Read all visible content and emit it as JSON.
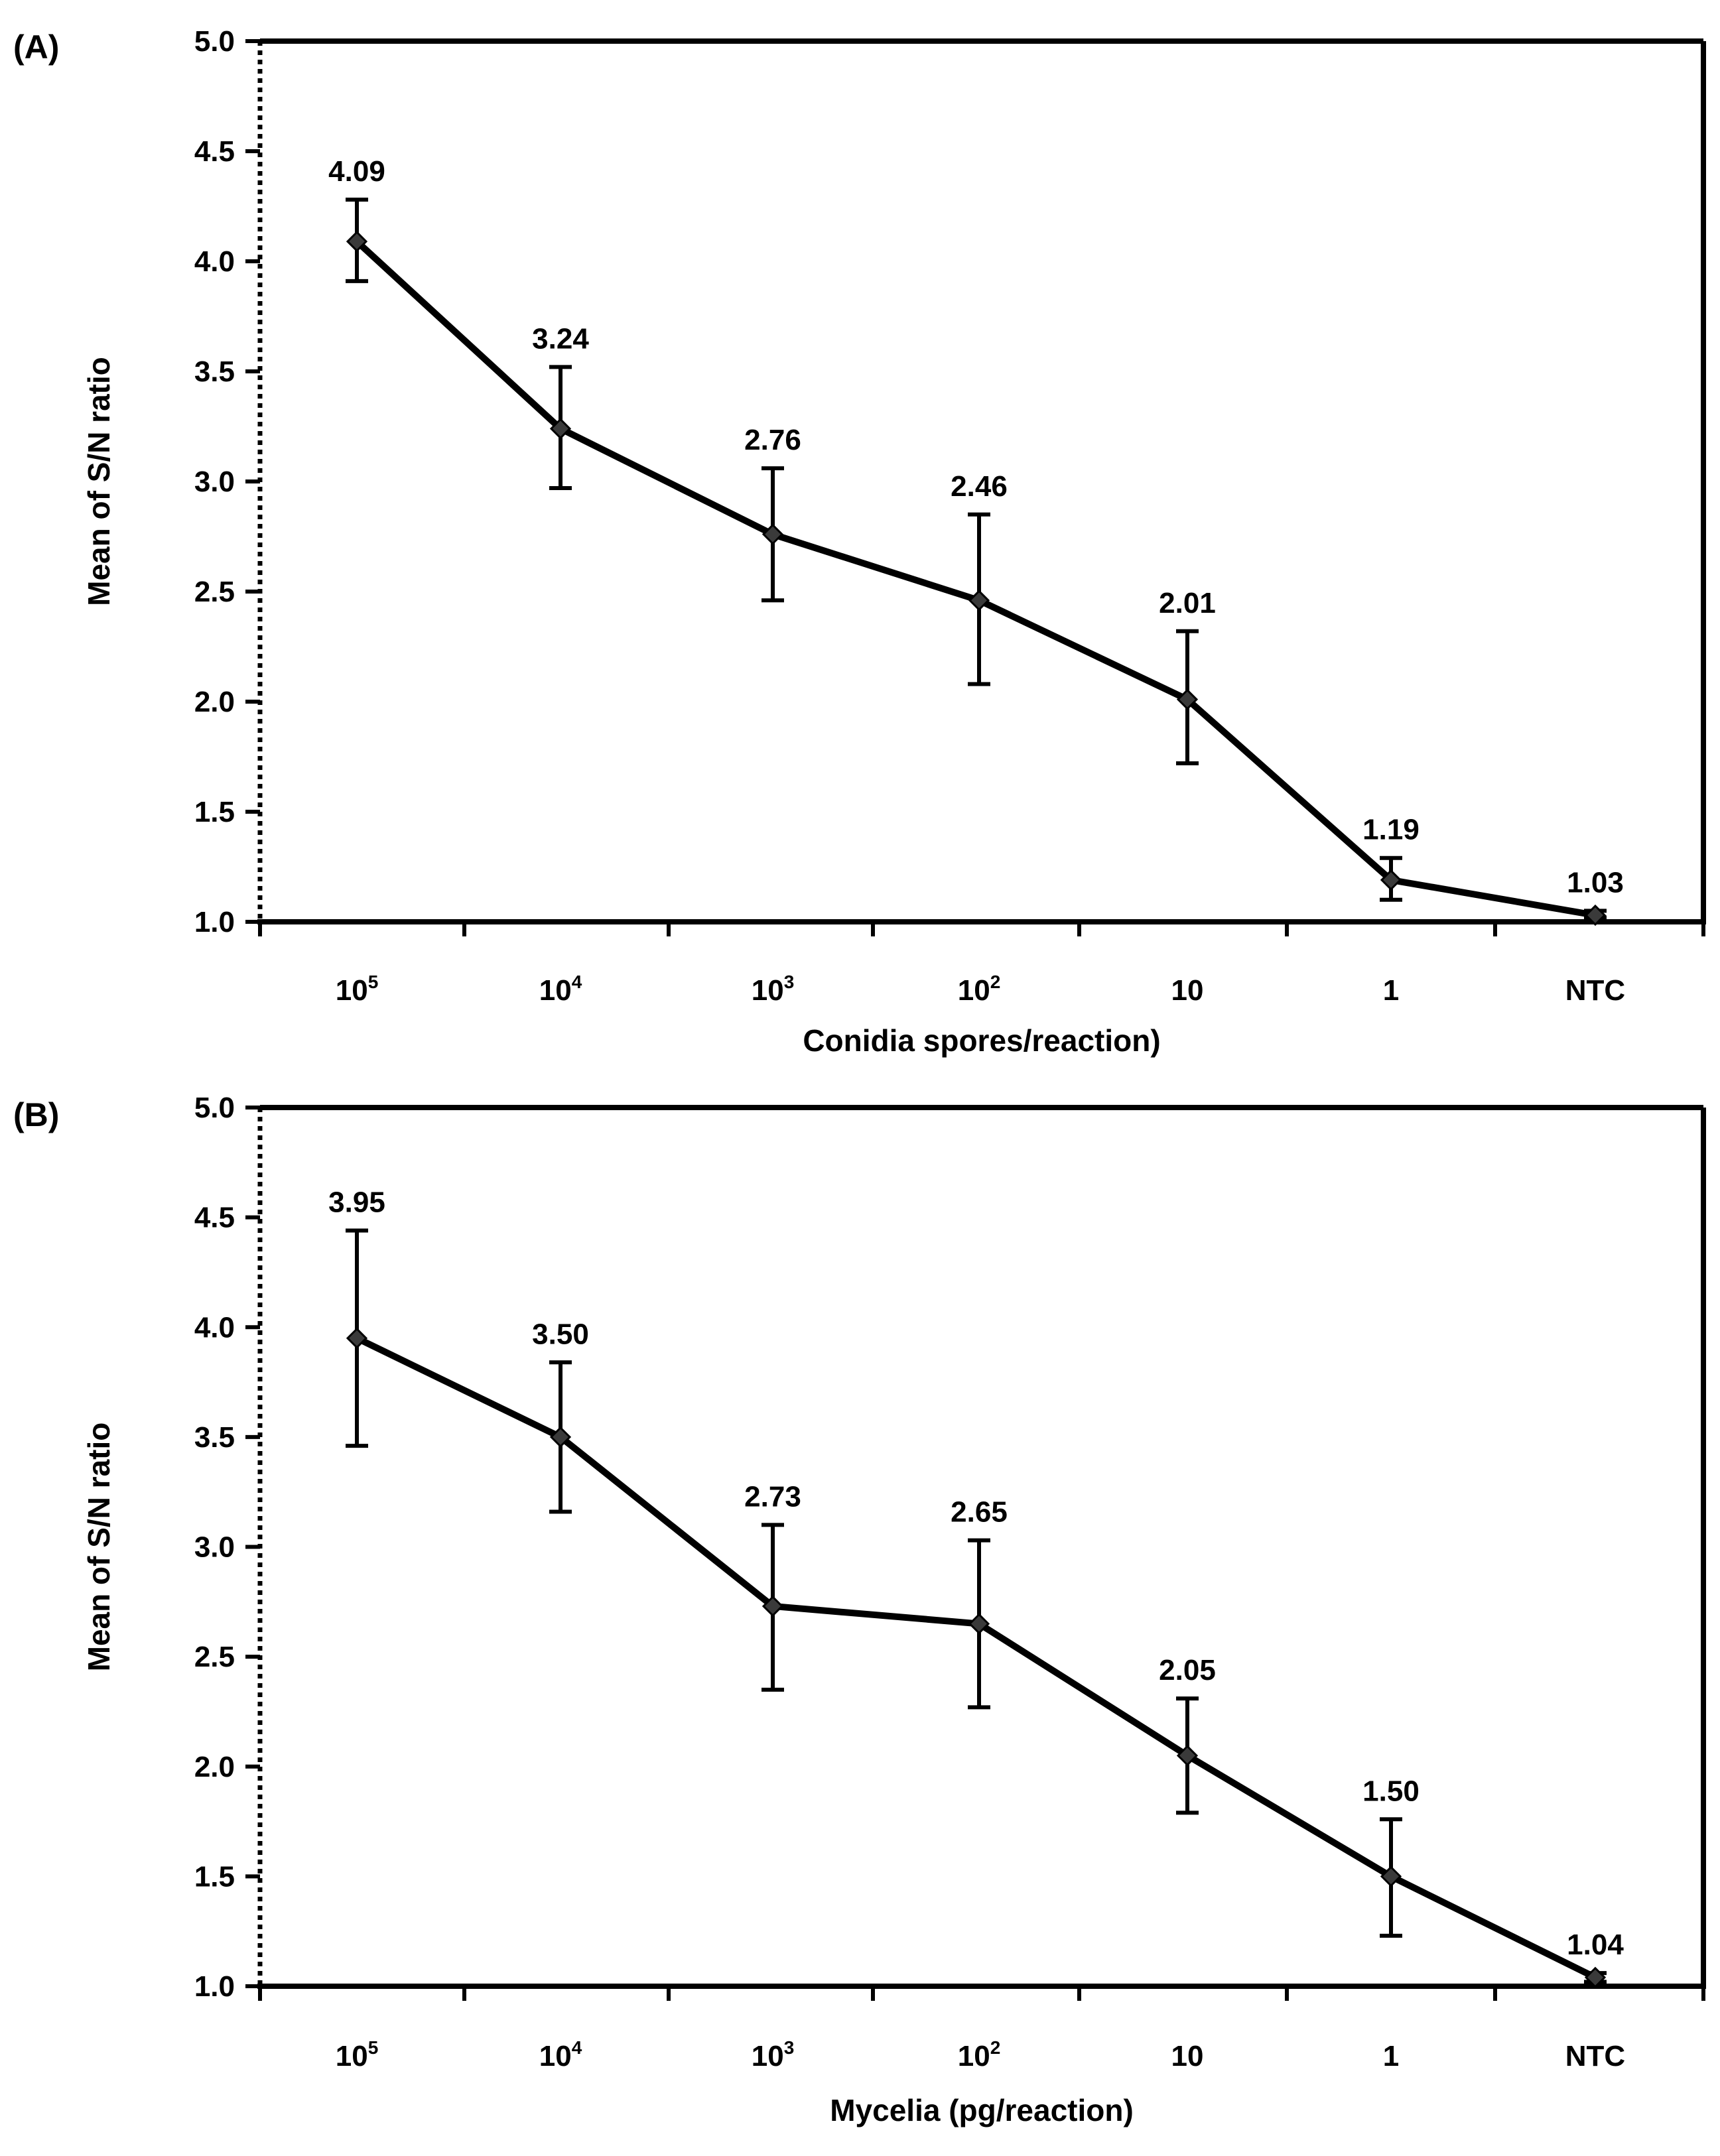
{
  "chart_data": [
    {
      "type": "line",
      "panel_label": "(A)",
      "xlabel": "Conidia spores/reaction)",
      "ylabel": "Mean of S/N ratio",
      "ylim": [
        1.0,
        5.0
      ],
      "yticks": [
        "1.0",
        "1.5",
        "2.0",
        "2.5",
        "3.0",
        "3.5",
        "4.0",
        "4.5",
        "5.0"
      ],
      "categories": [
        {
          "base": "10",
          "sup": "5"
        },
        {
          "base": "10",
          "sup": "4"
        },
        {
          "base": "10",
          "sup": "3"
        },
        {
          "base": "10",
          "sup": "2"
        },
        {
          "base": "10",
          "sup": ""
        },
        {
          "base": "1",
          "sup": ""
        },
        {
          "base": "NTC",
          "sup": ""
        }
      ],
      "values": [
        4.09,
        3.24,
        2.76,
        2.46,
        2.01,
        1.19,
        1.03
      ],
      "value_labels": [
        "4.09",
        "3.24",
        "2.76",
        "2.46",
        "2.01",
        "1.19",
        "1.03"
      ],
      "error_upper": [
        4.28,
        3.52,
        3.06,
        2.85,
        2.32,
        1.29,
        1.05
      ],
      "error_lower": [
        3.91,
        2.97,
        2.46,
        2.08,
        1.72,
        1.1,
        1.02
      ],
      "grid": false,
      "color": "#000000"
    },
    {
      "type": "line",
      "panel_label": "(B)",
      "xlabel": "Mycelia (pg/reaction)",
      "ylabel": "Mean of S/N ratio",
      "ylim": [
        1.0,
        5.0
      ],
      "yticks": [
        "1.0",
        "1.5",
        "2.0",
        "2.5",
        "3.0",
        "3.5",
        "4.0",
        "4.5",
        "5.0"
      ],
      "categories": [
        {
          "base": "10",
          "sup": "5"
        },
        {
          "base": "10",
          "sup": "4"
        },
        {
          "base": "10",
          "sup": "3"
        },
        {
          "base": "10",
          "sup": "2"
        },
        {
          "base": "10",
          "sup": ""
        },
        {
          "base": "1",
          "sup": ""
        },
        {
          "base": "NTC",
          "sup": ""
        }
      ],
      "values": [
        3.95,
        3.5,
        2.73,
        2.65,
        2.05,
        1.5,
        1.04
      ],
      "value_labels": [
        "3.95",
        "3.50",
        "2.73",
        "2.65",
        "2.05",
        "1.50",
        "1.04"
      ],
      "error_upper": [
        4.44,
        3.84,
        3.1,
        3.03,
        2.31,
        1.76,
        1.06
      ],
      "error_lower": [
        3.46,
        3.16,
        2.35,
        2.27,
        1.79,
        1.23,
        1.02
      ],
      "grid": false,
      "color": "#000000"
    }
  ]
}
